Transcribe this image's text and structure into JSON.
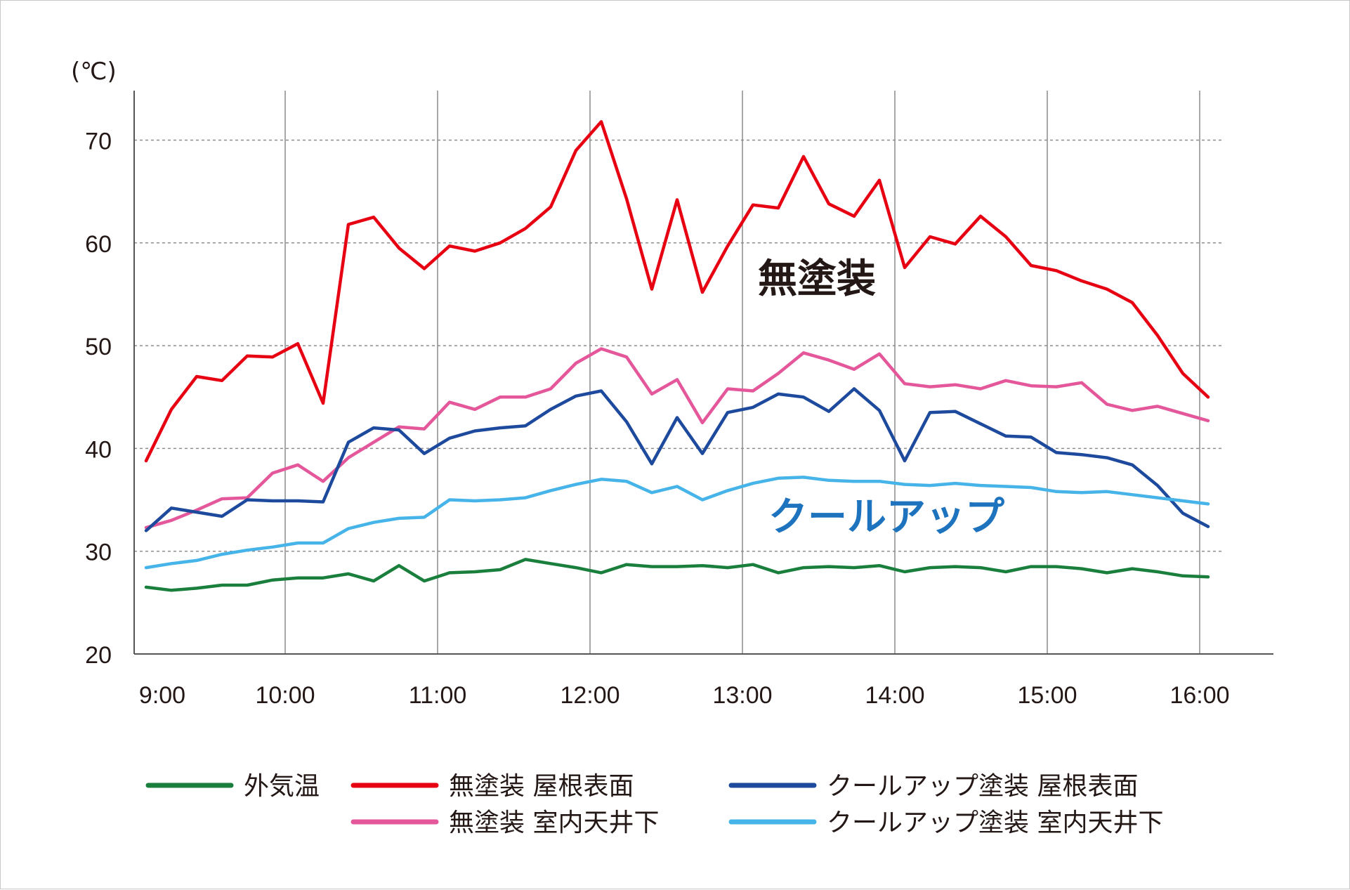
{
  "chart_data": {
    "type": "line",
    "y_unit": "(℃)",
    "ylim": [
      20,
      75
    ],
    "yticks": [
      20,
      30,
      40,
      50,
      60,
      70
    ],
    "xticks": [
      "9:00",
      "10:00",
      "11:00",
      "12:00",
      "13:00",
      "14:00",
      "15:00",
      "16:00"
    ],
    "x_start": "8:55",
    "x_step_minutes": 10,
    "grid": "dashed horizontal and solid vertical",
    "annotations": [
      {
        "text": "無塗装",
        "color": "#231815"
      },
      {
        "text": "クールアップ",
        "color": "#1e73be"
      }
    ],
    "series": [
      {
        "name": "外気温",
        "color": "#1a7f3c",
        "values": [
          26.5,
          26.2,
          26.4,
          26.7,
          26.7,
          27.2,
          27.4,
          27.4,
          27.8,
          27.1,
          28.6,
          27.1,
          27.9,
          28.0,
          28.2,
          29.2,
          28.8,
          28.4,
          27.9,
          28.7,
          28.5,
          28.5,
          28.6,
          28.4,
          28.7,
          27.9,
          28.4,
          28.5,
          28.4,
          28.6,
          28.0,
          28.4,
          28.5,
          28.4,
          28.0,
          28.5,
          28.5,
          28.3,
          27.9,
          28.3,
          28.0,
          27.6,
          27.5
        ]
      },
      {
        "name": "無塗装 屋根表面",
        "color": "#e60012",
        "values": [
          38.8,
          43.8,
          47.0,
          46.6,
          49.0,
          48.9,
          50.2,
          44.4,
          61.8,
          62.5,
          59.5,
          57.5,
          59.7,
          59.2,
          60.0,
          61.4,
          63.5,
          69.0,
          71.8,
          64.3,
          55.5,
          64.2,
          55.2,
          59.7,
          63.7,
          63.4,
          68.4,
          63.8,
          62.6,
          66.1,
          57.6,
          60.6,
          59.9,
          62.6,
          60.6,
          57.8,
          57.3,
          56.3,
          55.5,
          54.2,
          51.0,
          47.3,
          45.0
        ]
      },
      {
        "name": "無塗装 室内天井下",
        "color": "#e4579a",
        "values": [
          32.3,
          33.0,
          34.0,
          35.1,
          35.2,
          37.6,
          38.4,
          36.8,
          39.1,
          40.6,
          42.1,
          41.9,
          44.5,
          43.8,
          45.0,
          45.0,
          45.8,
          48.3,
          49.7,
          48.9,
          45.3,
          46.7,
          42.5,
          45.8,
          45.6,
          47.3,
          49.3,
          48.6,
          47.7,
          49.2,
          46.3,
          46.0,
          46.2,
          45.8,
          46.6,
          46.1,
          46.0,
          46.4,
          44.3,
          43.7,
          44.1,
          43.4,
          42.7
        ]
      },
      {
        "name": "クールアップ塗装 屋根表面",
        "color": "#1d4a9c",
        "values": [
          32.0,
          34.2,
          33.8,
          33.4,
          35.0,
          34.9,
          34.9,
          34.8,
          40.6,
          42.0,
          41.8,
          39.5,
          41.0,
          41.7,
          42.0,
          42.2,
          43.8,
          45.1,
          45.6,
          42.6,
          38.5,
          43.0,
          39.5,
          43.5,
          44.0,
          45.3,
          45.0,
          43.6,
          45.8,
          43.7,
          38.8,
          43.5,
          43.6,
          42.4,
          41.2,
          41.1,
          39.6,
          39.4,
          39.1,
          38.4,
          36.4,
          33.7,
          32.4
        ]
      },
      {
        "name": "クールアップ塗装 室内天井下",
        "color": "#46b4e8",
        "values": [
          28.4,
          28.8,
          29.1,
          29.7,
          30.1,
          30.4,
          30.8,
          30.8,
          32.2,
          32.8,
          33.2,
          33.3,
          35.0,
          34.9,
          35.0,
          35.2,
          35.9,
          36.5,
          37.0,
          36.8,
          35.7,
          36.3,
          35.0,
          35.9,
          36.6,
          37.1,
          37.2,
          36.9,
          36.8,
          36.8,
          36.5,
          36.4,
          36.6,
          36.4,
          36.3,
          36.2,
          35.8,
          35.7,
          35.8,
          35.5,
          35.2,
          34.9,
          34.6
        ]
      }
    ]
  }
}
